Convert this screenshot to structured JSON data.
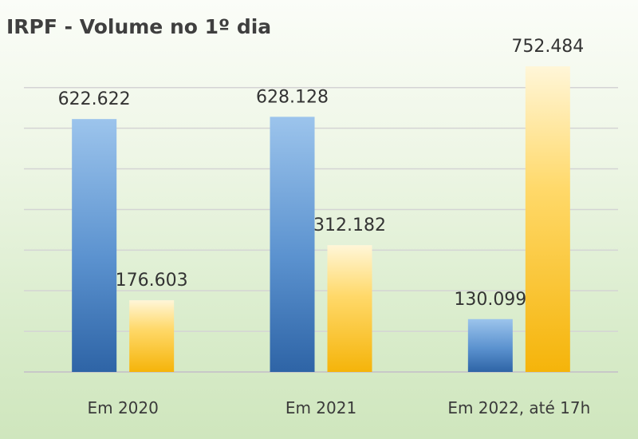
{
  "chart_data": {
    "type": "bar",
    "title": "IRPF - Volume no 1º dia",
    "xlabel": "",
    "ylabel": "",
    "categories": [
      "Em 2020",
      "Em 2021",
      "Em 2022, até 17h"
    ],
    "series": [
      {
        "values": [
          622622,
          628128,
          130099
        ],
        "labels": [
          "622.622",
          "628.128",
          "130.099"
        ],
        "color": "#4a84c4"
      },
      {
        "values": [
          176603,
          312182,
          752484
        ],
        "labels": [
          "176.603",
          "312.182",
          "752.484"
        ],
        "color": "#f7bd16"
      }
    ],
    "ylim": [
      0,
      900000
    ],
    "grid": true,
    "legend": "none"
  }
}
